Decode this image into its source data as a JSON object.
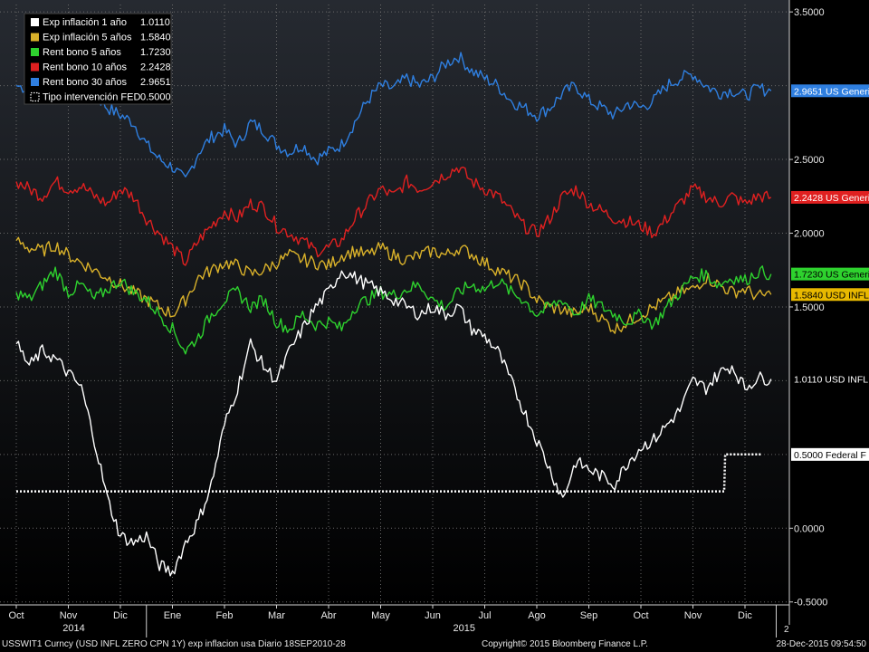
{
  "chart_data": {
    "type": "line",
    "x_axis": {
      "months": [
        "Oct",
        "Nov",
        "Dic",
        "Ene",
        "Feb",
        "Mar",
        "Abr",
        "May",
        "Jun",
        "Jul",
        "Ago",
        "Sep",
        "Oct",
        "Nov",
        "Dic"
      ],
      "years": [
        {
          "label": "2014"
        },
        {
          "label": "2015"
        }
      ],
      "x_range_months": [
        0,
        14.6
      ]
    },
    "y_axis": {
      "ticks": [
        "3.5000",
        "2.5000",
        "2.0000",
        "1.5000",
        "0.0000",
        "-0.5000"
      ],
      "ylim": [
        -0.52,
        3.55
      ],
      "grid_values": [
        3.5,
        3.0,
        2.5,
        2.0,
        1.5,
        1.0,
        0.5,
        0.0,
        -0.5
      ]
    },
    "legend": {
      "position": "top-left",
      "entries": [
        {
          "name": "Exp inflación 1 año",
          "value": "1.0110",
          "color": "#ffffff"
        },
        {
          "name": "Exp inflación 5 años",
          "value": "1.5840",
          "color": "#d9b12a"
        },
        {
          "name": "Rent bono 5 años",
          "value": "1.7230",
          "color": "#2ed22e"
        },
        {
          "name": "Rent bono 10 años",
          "value": "2.2428",
          "color": "#e02020"
        },
        {
          "name": "Rent bono 30 años",
          "value": "2.9651",
          "color": "#2f7fe0"
        },
        {
          "name": "Tipo intervención FED",
          "value": "0.5000",
          "color": "#ffffff",
          "dotted": true
        }
      ]
    },
    "tags": [
      {
        "text": "2.9651 US Generi",
        "value": 2.9651,
        "bg": "#2f7fe0",
        "fg": "#ffffff"
      },
      {
        "text": "2.2428 US Generi",
        "value": 2.2428,
        "bg": "#e02020",
        "fg": "#ffffff"
      },
      {
        "text": "1.7230 US Generi",
        "value": 1.723,
        "bg": "#2ed22e",
        "fg": "#000000"
      },
      {
        "text": "1.5840 USD INFL",
        "value": 1.584,
        "bg": "#e8b800",
        "fg": "#000000"
      },
      {
        "text": "1.0110 USD INFL",
        "value": 1.011,
        "bg": "#000000",
        "fg": "#ffffff"
      },
      {
        "text": "0.5000 Federal F",
        "value": 0.5,
        "bg": "#ffffff",
        "fg": "#000000"
      }
    ],
    "series": [
      {
        "name": "Rent bono 30 años",
        "color": "#2f7fe0",
        "x": [
          0,
          0.25,
          0.5,
          0.75,
          1,
          1.25,
          1.5,
          1.75,
          2,
          2.25,
          2.5,
          2.75,
          3,
          3.25,
          3.5,
          3.75,
          4,
          4.25,
          4.5,
          4.75,
          5,
          5.25,
          5.5,
          5.75,
          6,
          6.25,
          6.5,
          6.75,
          7,
          7.25,
          7.5,
          7.75,
          8,
          8.25,
          8.5,
          8.75,
          9,
          9.25,
          9.5,
          9.75,
          10,
          10.25,
          10.5,
          10.75,
          11,
          11.25,
          11.5,
          11.75,
          12,
          12.25,
          12.5,
          12.75,
          13,
          13.25,
          13.5,
          13.75,
          14,
          14.25,
          14.5
        ],
        "y": [
          3.0,
          2.98,
          2.93,
          3.05,
          3.02,
          3.0,
          2.95,
          2.85,
          2.8,
          2.75,
          2.6,
          2.5,
          2.45,
          2.35,
          2.55,
          2.65,
          2.7,
          2.6,
          2.75,
          2.7,
          2.6,
          2.55,
          2.6,
          2.5,
          2.55,
          2.6,
          2.75,
          2.9,
          3.0,
          2.98,
          3.05,
          3.0,
          3.05,
          3.15,
          3.2,
          3.1,
          3.05,
          3.0,
          2.9,
          2.85,
          2.8,
          2.85,
          2.95,
          3.0,
          2.9,
          2.85,
          2.8,
          2.88,
          2.85,
          2.9,
          3.0,
          3.05,
          3.08,
          3.0,
          2.95,
          2.97,
          2.93,
          2.98,
          2.9651
        ]
      },
      {
        "name": "Rent bono 10 años",
        "color": "#e02020",
        "x": [
          0,
          0.25,
          0.5,
          0.75,
          1,
          1.25,
          1.5,
          1.75,
          2,
          2.25,
          2.5,
          2.75,
          3,
          3.25,
          3.5,
          3.75,
          4,
          4.25,
          4.5,
          4.75,
          5,
          5.25,
          5.5,
          5.75,
          6,
          6.25,
          6.5,
          6.75,
          7,
          7.25,
          7.5,
          7.75,
          8,
          8.25,
          8.5,
          8.75,
          9,
          9.25,
          9.5,
          9.75,
          10,
          10.25,
          10.5,
          10.75,
          11,
          11.25,
          11.5,
          11.75,
          12,
          12.25,
          12.5,
          12.75,
          13,
          13.25,
          13.5,
          13.75,
          14,
          14.25,
          14.5
        ],
        "y": [
          2.35,
          2.3,
          2.25,
          2.35,
          2.3,
          2.32,
          2.25,
          2.2,
          2.3,
          2.25,
          2.1,
          2.0,
          1.9,
          1.8,
          1.95,
          2.05,
          2.15,
          2.1,
          2.2,
          2.18,
          2.05,
          2.0,
          1.95,
          1.88,
          1.9,
          1.95,
          2.1,
          2.2,
          2.3,
          2.25,
          2.35,
          2.3,
          2.35,
          2.4,
          2.45,
          2.35,
          2.3,
          2.25,
          2.15,
          2.05,
          2.0,
          2.1,
          2.25,
          2.3,
          2.2,
          2.15,
          2.1,
          2.08,
          2.05,
          2.0,
          2.1,
          2.2,
          2.3,
          2.25,
          2.2,
          2.25,
          2.2,
          2.25,
          2.2428
        ]
      },
      {
        "name": "Exp inflación 5 años",
        "color": "#d9b12a",
        "x": [
          0,
          0.25,
          0.5,
          0.75,
          1,
          1.25,
          1.5,
          1.75,
          2,
          2.25,
          2.5,
          2.75,
          3,
          3.25,
          3.5,
          3.75,
          4,
          4.25,
          4.5,
          4.75,
          5,
          5.25,
          5.5,
          5.75,
          6,
          6.25,
          6.5,
          6.75,
          7,
          7.25,
          7.5,
          7.75,
          8,
          8.25,
          8.5,
          8.75,
          9,
          9.25,
          9.5,
          9.75,
          10,
          10.25,
          10.5,
          10.75,
          11,
          11.25,
          11.5,
          11.75,
          12,
          12.25,
          12.5,
          12.75,
          13,
          13.25,
          13.5,
          13.75,
          14,
          14.25,
          14.5
        ],
        "y": [
          1.95,
          1.9,
          1.88,
          1.92,
          1.85,
          1.8,
          1.75,
          1.7,
          1.65,
          1.6,
          1.55,
          1.5,
          1.45,
          1.55,
          1.7,
          1.75,
          1.8,
          1.78,
          1.72,
          1.75,
          1.8,
          1.85,
          1.82,
          1.8,
          1.78,
          1.85,
          1.88,
          1.85,
          1.9,
          1.85,
          1.82,
          1.85,
          1.88,
          1.85,
          1.9,
          1.86,
          1.8,
          1.75,
          1.7,
          1.65,
          1.55,
          1.5,
          1.48,
          1.45,
          1.5,
          1.42,
          1.35,
          1.4,
          1.45,
          1.5,
          1.55,
          1.6,
          1.62,
          1.7,
          1.65,
          1.6,
          1.62,
          1.57,
          1.584
        ]
      },
      {
        "name": "Rent bono 5 años",
        "color": "#2ed22e",
        "x": [
          0,
          0.25,
          0.5,
          0.75,
          1,
          1.25,
          1.5,
          1.75,
          2,
          2.25,
          2.5,
          2.75,
          3,
          3.25,
          3.5,
          3.75,
          4,
          4.25,
          4.5,
          4.75,
          5,
          5.25,
          5.5,
          5.75,
          6,
          6.25,
          6.5,
          6.75,
          7,
          7.25,
          7.5,
          7.75,
          8,
          8.25,
          8.5,
          8.75,
          9,
          9.25,
          9.5,
          9.75,
          10,
          10.25,
          10.5,
          10.75,
          11,
          11.25,
          11.5,
          11.75,
          12,
          12.25,
          12.5,
          12.75,
          13,
          13.25,
          13.5,
          13.75,
          14,
          14.25,
          14.5
        ],
        "y": [
          1.6,
          1.55,
          1.65,
          1.75,
          1.6,
          1.65,
          1.55,
          1.62,
          1.68,
          1.6,
          1.55,
          1.45,
          1.35,
          1.2,
          1.3,
          1.45,
          1.55,
          1.6,
          1.5,
          1.55,
          1.4,
          1.35,
          1.45,
          1.38,
          1.4,
          1.35,
          1.5,
          1.55,
          1.6,
          1.58,
          1.62,
          1.65,
          1.55,
          1.5,
          1.6,
          1.65,
          1.62,
          1.68,
          1.6,
          1.55,
          1.45,
          1.5,
          1.55,
          1.45,
          1.55,
          1.5,
          1.45,
          1.4,
          1.45,
          1.38,
          1.5,
          1.6,
          1.7,
          1.72,
          1.65,
          1.7,
          1.68,
          1.74,
          1.723
        ]
      },
      {
        "name": "Exp inflación 1 año",
        "color": "#ffffff",
        "x": [
          0,
          0.25,
          0.5,
          0.75,
          1,
          1.25,
          1.5,
          1.75,
          2,
          2.25,
          2.5,
          2.75,
          3,
          3.25,
          3.5,
          3.75,
          4,
          4.25,
          4.5,
          4.75,
          5,
          5.25,
          5.5,
          5.75,
          6,
          6.25,
          6.5,
          6.75,
          7,
          7.25,
          7.5,
          7.75,
          8,
          8.25,
          8.5,
          8.75,
          9,
          9.25,
          9.5,
          9.75,
          10,
          10.25,
          10.5,
          10.75,
          11,
          11.25,
          11.5,
          11.75,
          12,
          12.25,
          12.5,
          12.75,
          13,
          13.25,
          13.5,
          13.75,
          14,
          14.25,
          14.5
        ],
        "y": [
          1.25,
          1.1,
          1.2,
          1.15,
          1.05,
          0.95,
          0.6,
          0.2,
          -0.05,
          -0.1,
          -0.05,
          -0.25,
          -0.3,
          -0.1,
          0.05,
          0.3,
          0.7,
          0.95,
          1.25,
          1.1,
          1.0,
          1.2,
          1.35,
          1.5,
          1.6,
          1.75,
          1.7,
          1.65,
          1.6,
          1.55,
          1.5,
          1.45,
          1.5,
          1.45,
          1.5,
          1.35,
          1.3,
          1.2,
          1.0,
          0.8,
          0.6,
          0.4,
          0.2,
          0.45,
          0.4,
          0.35,
          0.3,
          0.45,
          0.55,
          0.6,
          0.7,
          0.8,
          1.0,
          0.95,
          1.05,
          1.1,
          0.95,
          1.02,
          1.011
        ]
      },
      {
        "name": "Tipo intervención FED",
        "color": "#ffffff",
        "dotted": true,
        "x": [
          0,
          13.55,
          13.6,
          13.62,
          14.3
        ],
        "y": [
          0.25,
          0.25,
          0.25,
          0.5,
          0.5
        ]
      }
    ]
  },
  "footer": {
    "left": "USSWIT1 Curncy (USD INFL ZERO CPN    1Y) exp inflacion usa  Diario 18SEP2010-28",
    "center": "Copyright© 2015 Bloomberg Finance L.P.",
    "right": "28-Dec-2015 09:54:50",
    "page_marker": "2"
  }
}
